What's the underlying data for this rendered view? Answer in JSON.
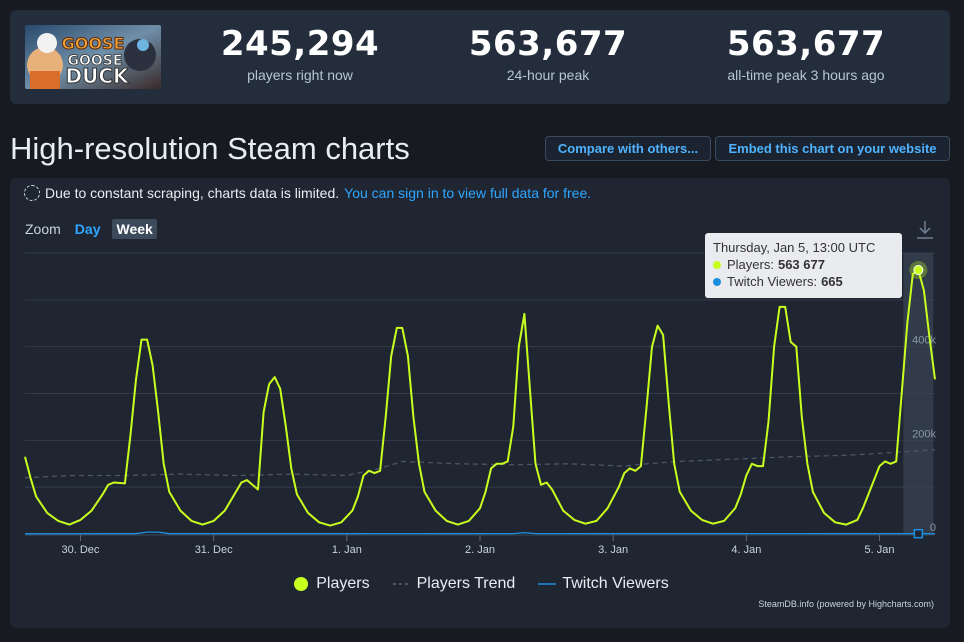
{
  "stats": [
    {
      "value": "245,294",
      "label": "players right now"
    },
    {
      "value": "563,677",
      "label": "24-hour peak"
    },
    {
      "value": "563,677",
      "label": "all-time peak 3 hours ago"
    }
  ],
  "page_title": "High-resolution Steam charts",
  "buttons": {
    "compare": "Compare with others...",
    "embed": "Embed this chart on your website"
  },
  "notice": {
    "text": "Due to constant scraping, charts data is limited.",
    "link": "You can sign in to view full data for free."
  },
  "zoom": {
    "label": "Zoom",
    "day": "Day",
    "week": "Week"
  },
  "legend": {
    "players": "Players",
    "trend": "Players Trend",
    "twitch": "Twitch Viewers"
  },
  "credit": "SteamDB.info (powered by Highcharts.com)",
  "tooltip": {
    "title": "Thursday, Jan 5, 13:00 UTC",
    "players_label": "Players:",
    "players_value": "563 677",
    "twitch_label": "Twitch Viewers:",
    "twitch_value": "665"
  },
  "colors": {
    "players": "#c8ff1e",
    "trend": "#4b5563",
    "twitch": "#1d8fe0",
    "accent": "#2fa6ff"
  },
  "chart_data": {
    "type": "line",
    "x_ticks": [
      {
        "label": "30. Dec",
        "t": 12
      },
      {
        "label": "31. Dec",
        "t": 36
      },
      {
        "label": "1. Jan",
        "t": 60
      },
      {
        "label": "2. Jan",
        "t": 84
      },
      {
        "label": "3. Jan",
        "t": 108
      },
      {
        "label": "4. Jan",
        "t": 132
      },
      {
        "label": "5. Jan",
        "t": 156
      }
    ],
    "y_ticks": [
      {
        "label": "0",
        "v": 0
      },
      {
        "label": "200k",
        "v": 200000
      },
      {
        "label": "400k",
        "v": 400000
      }
    ],
    "ylim": [
      0,
      600000
    ],
    "xlim": [
      2,
      166
    ],
    "grid": true,
    "series": [
      {
        "name": "Players",
        "points": [
          [
            2,
            165000
          ],
          [
            3,
            120000
          ],
          [
            4,
            80000
          ],
          [
            6,
            45000
          ],
          [
            8,
            28000
          ],
          [
            10,
            20000
          ],
          [
            12,
            30000
          ],
          [
            14,
            50000
          ],
          [
            16,
            85000
          ],
          [
            17,
            105000
          ],
          [
            18,
            110000
          ],
          [
            20,
            108000
          ],
          [
            21,
            210000
          ],
          [
            22,
            330000
          ],
          [
            23,
            415000
          ],
          [
            24,
            415000
          ],
          [
            25,
            360000
          ],
          [
            26,
            260000
          ],
          [
            27,
            150000
          ],
          [
            28,
            90000
          ],
          [
            30,
            50000
          ],
          [
            32,
            28000
          ],
          [
            34,
            20000
          ],
          [
            36,
            28000
          ],
          [
            38,
            50000
          ],
          [
            40,
            90000
          ],
          [
            41,
            110000
          ],
          [
            42,
            115000
          ],
          [
            44,
            95000
          ],
          [
            45,
            260000
          ],
          [
            46,
            320000
          ],
          [
            47,
            335000
          ],
          [
            48,
            310000
          ],
          [
            49,
            230000
          ],
          [
            50,
            140000
          ],
          [
            51,
            85000
          ],
          [
            53,
            45000
          ],
          [
            55,
            25000
          ],
          [
            57,
            18000
          ],
          [
            59,
            25000
          ],
          [
            61,
            50000
          ],
          [
            62,
            80000
          ],
          [
            63,
            125000
          ],
          [
            64,
            135000
          ],
          [
            65,
            130000
          ],
          [
            66,
            135000
          ],
          [
            67,
            250000
          ],
          [
            68,
            380000
          ],
          [
            69,
            440000
          ],
          [
            70,
            440000
          ],
          [
            71,
            380000
          ],
          [
            72,
            250000
          ],
          [
            73,
            150000
          ],
          [
            74,
            90000
          ],
          [
            76,
            50000
          ],
          [
            78,
            28000
          ],
          [
            80,
            20000
          ],
          [
            82,
            28000
          ],
          [
            84,
            55000
          ],
          [
            85,
            90000
          ],
          [
            86,
            140000
          ],
          [
            87,
            150000
          ],
          [
            88,
            150000
          ],
          [
            89,
            155000
          ],
          [
            90,
            230000
          ],
          [
            91,
            400000
          ],
          [
            92,
            470000
          ],
          [
            93,
            310000
          ],
          [
            94,
            150000
          ],
          [
            95,
            105000
          ],
          [
            96,
            110000
          ],
          [
            97,
            95000
          ],
          [
            99,
            50000
          ],
          [
            101,
            30000
          ],
          [
            103,
            22000
          ],
          [
            105,
            28000
          ],
          [
            107,
            55000
          ],
          [
            109,
            100000
          ],
          [
            110,
            130000
          ],
          [
            111,
            140000
          ],
          [
            112,
            135000
          ],
          [
            113,
            145000
          ],
          [
            114,
            270000
          ],
          [
            115,
            400000
          ],
          [
            116,
            445000
          ],
          [
            117,
            425000
          ],
          [
            118,
            280000
          ],
          [
            119,
            150000
          ],
          [
            120,
            90000
          ],
          [
            122,
            50000
          ],
          [
            124,
            30000
          ],
          [
            126,
            22000
          ],
          [
            128,
            28000
          ],
          [
            130,
            55000
          ],
          [
            131,
            85000
          ],
          [
            132,
            125000
          ],
          [
            133,
            150000
          ],
          [
            134,
            145000
          ],
          [
            135,
            145000
          ],
          [
            136,
            240000
          ],
          [
            137,
            400000
          ],
          [
            138,
            485000
          ],
          [
            139,
            485000
          ],
          [
            140,
            410000
          ],
          [
            141,
            400000
          ],
          [
            142,
            250000
          ],
          [
            143,
            150000
          ],
          [
            144,
            90000
          ],
          [
            146,
            45000
          ],
          [
            148,
            25000
          ],
          [
            150,
            20000
          ],
          [
            152,
            30000
          ],
          [
            153,
            55000
          ],
          [
            155,
            115000
          ],
          [
            156,
            145000
          ],
          [
            157,
            155000
          ],
          [
            158,
            150000
          ],
          [
            159,
            155000
          ],
          [
            160,
            300000
          ],
          [
            161,
            450000
          ],
          [
            162,
            555000
          ],
          [
            163,
            563677
          ],
          [
            164,
            520000
          ],
          [
            165,
            420000
          ],
          [
            166,
            330000
          ]
        ]
      },
      {
        "name": "Players Trend",
        "points": [
          [
            2,
            120000
          ],
          [
            10,
            125000
          ],
          [
            20,
            125000
          ],
          [
            30,
            128000
          ],
          [
            40,
            125000
          ],
          [
            50,
            128000
          ],
          [
            60,
            125000
          ],
          [
            66,
            140000
          ],
          [
            70,
            155000
          ],
          [
            80,
            150000
          ],
          [
            90,
            148000
          ],
          [
            100,
            150000
          ],
          [
            110,
            145000
          ],
          [
            114,
            150000
          ],
          [
            120,
            155000
          ],
          [
            130,
            160000
          ],
          [
            140,
            165000
          ],
          [
            150,
            168000
          ],
          [
            160,
            175000
          ],
          [
            166,
            180000
          ]
        ]
      },
      {
        "name": "Twitch Viewers",
        "points": [
          [
            2,
            500
          ],
          [
            18,
            600
          ],
          [
            22,
            700
          ],
          [
            24,
            4000
          ],
          [
            26,
            4000
          ],
          [
            28,
            700
          ],
          [
            40,
            600
          ],
          [
            50,
            700
          ],
          [
            60,
            600
          ],
          [
            70,
            800
          ],
          [
            80,
            700
          ],
          [
            90,
            900
          ],
          [
            92,
            3000
          ],
          [
            94,
            900
          ],
          [
            110,
            700
          ],
          [
            120,
            600
          ],
          [
            130,
            700
          ],
          [
            140,
            800
          ],
          [
            150,
            700
          ],
          [
            160,
            600
          ],
          [
            163,
            665
          ],
          [
            166,
            600
          ]
        ]
      }
    ],
    "hover_index_t": 163
  }
}
